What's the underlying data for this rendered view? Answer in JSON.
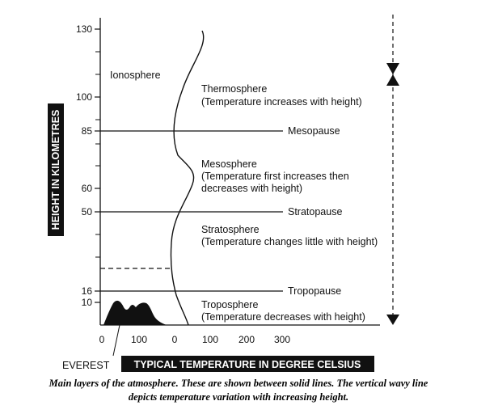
{
  "y_axis": {
    "title": "HEIGHT IN KILOMETRES",
    "ticks": [
      "130",
      "100",
      "85",
      "60",
      "50",
      "16",
      "10"
    ]
  },
  "x_axis": {
    "title": "TYPICAL TEMPERATURE IN DEGREE CELSIUS",
    "ticks": [
      "0",
      "100",
      "0",
      "100",
      "200",
      "300"
    ]
  },
  "everest": "EVEREST",
  "layers": {
    "ionosphere": "Ionosphere",
    "thermosphere": {
      "name": "Thermosphere",
      "note": "(Temperature increases with height)"
    },
    "mesopause": "Mesopause",
    "mesosphere": {
      "name": "Mesosphere",
      "note_line1": "(Temperature first increases then",
      "note_line2": "decreases with height)"
    },
    "stratopause": "Stratopause",
    "stratosphere": {
      "name": "Stratosphere",
      "note": "(Temperature changes little with height)"
    },
    "tropopause": "Tropopause",
    "troposphere": {
      "name": "Troposphere",
      "note": "(Temperature decreases with height)"
    }
  },
  "caption": {
    "line1": "Main layers of the atmosphere. These are shown between solid lines. The vertical wavy line",
    "line2": "depicts temperature variation with increasing height."
  }
}
